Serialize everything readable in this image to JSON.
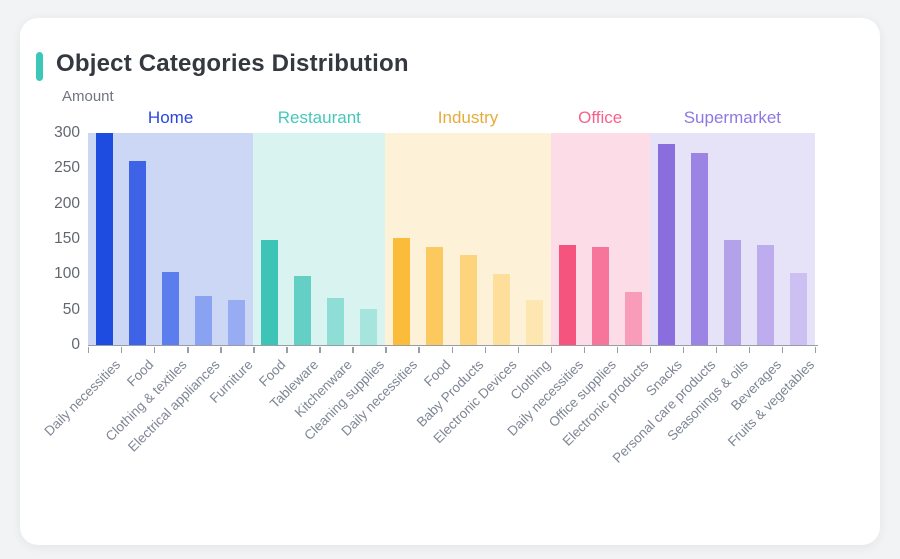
{
  "page": {
    "background": "#f1f3f4",
    "card_background": "#ffffff"
  },
  "header": {
    "title": "Object Categories Distribution",
    "accent_color": "#3dc7b9"
  },
  "chart_data": {
    "type": "bar",
    "title": "Object Categories Distribution",
    "xlabel": "",
    "ylabel": "Amount",
    "ylim": [
      0,
      300
    ],
    "yticks": [
      0,
      50,
      100,
      150,
      200,
      250,
      300
    ],
    "grid": false,
    "legend_position": "top-inline-group-labels",
    "axis_color": "#989da6",
    "groups": [
      {
        "name": "Home",
        "label_color": "#2b46dd",
        "band_color": "#ccd7f6",
        "bars": [
          {
            "label": "Daily necessities",
            "value": 300,
            "color": "#1e4be0"
          },
          {
            "label": "Food",
            "value": 260,
            "color": "#3f63e6"
          },
          {
            "label": "Clothing & textiles",
            "value": 103,
            "color": "#5b7ded"
          },
          {
            "label": "Electrical appliances",
            "value": 70,
            "color": "#8aa2f2"
          },
          {
            "label": "Furniture",
            "value": 64,
            "color": "#97acf3"
          }
        ]
      },
      {
        "name": "Restaurant",
        "label_color": "#45c8ba",
        "band_color": "#d9f3f0",
        "bars": [
          {
            "label": "Food",
            "value": 149,
            "color": "#3ec4b6"
          },
          {
            "label": "Tableware",
            "value": 98,
            "color": "#64d0c5"
          },
          {
            "label": "Kitchenware",
            "value": 66,
            "color": "#8eded6"
          },
          {
            "label": "Cleaning supplies",
            "value": 51,
            "color": "#a5e5de"
          }
        ]
      },
      {
        "name": "Industry",
        "label_color": "#e5ac3c",
        "band_color": "#fdf2d7",
        "bars": [
          {
            "label": "Daily necessities",
            "value": 151,
            "color": "#fbbc3c"
          },
          {
            "label": "Food",
            "value": 139,
            "color": "#fcc95f"
          },
          {
            "label": "Baby Products",
            "value": 127,
            "color": "#fdd37b"
          },
          {
            "label": "Electronic Devices",
            "value": 100,
            "color": "#fddf9b"
          },
          {
            "label": "Clothing",
            "value": 64,
            "color": "#fee6b0"
          }
        ]
      },
      {
        "name": "Office",
        "label_color": "#f7628c",
        "band_color": "#fcdce7",
        "bars": [
          {
            "label": "Daily necessities",
            "value": 142,
            "color": "#f5547f"
          },
          {
            "label": "Office supplies",
            "value": 139,
            "color": "#f7759b"
          },
          {
            "label": "Electronic products",
            "value": 75,
            "color": "#f99cb9"
          }
        ]
      },
      {
        "name": "Supermarket",
        "label_color": "#8f78e0",
        "band_color": "#e6e2f8",
        "bars": [
          {
            "label": "Snacks",
            "value": 285,
            "color": "#8a6ede"
          },
          {
            "label": "Personal care products",
            "value": 272,
            "color": "#9c84e4"
          },
          {
            "label": "Seasonings & oils",
            "value": 148,
            "color": "#b3a2ea"
          },
          {
            "label": "Beverages",
            "value": 141,
            "color": "#beadee"
          },
          {
            "label": "Fruits & vegetables",
            "value": 102,
            "color": "#ccc0f3"
          }
        ]
      }
    ]
  }
}
